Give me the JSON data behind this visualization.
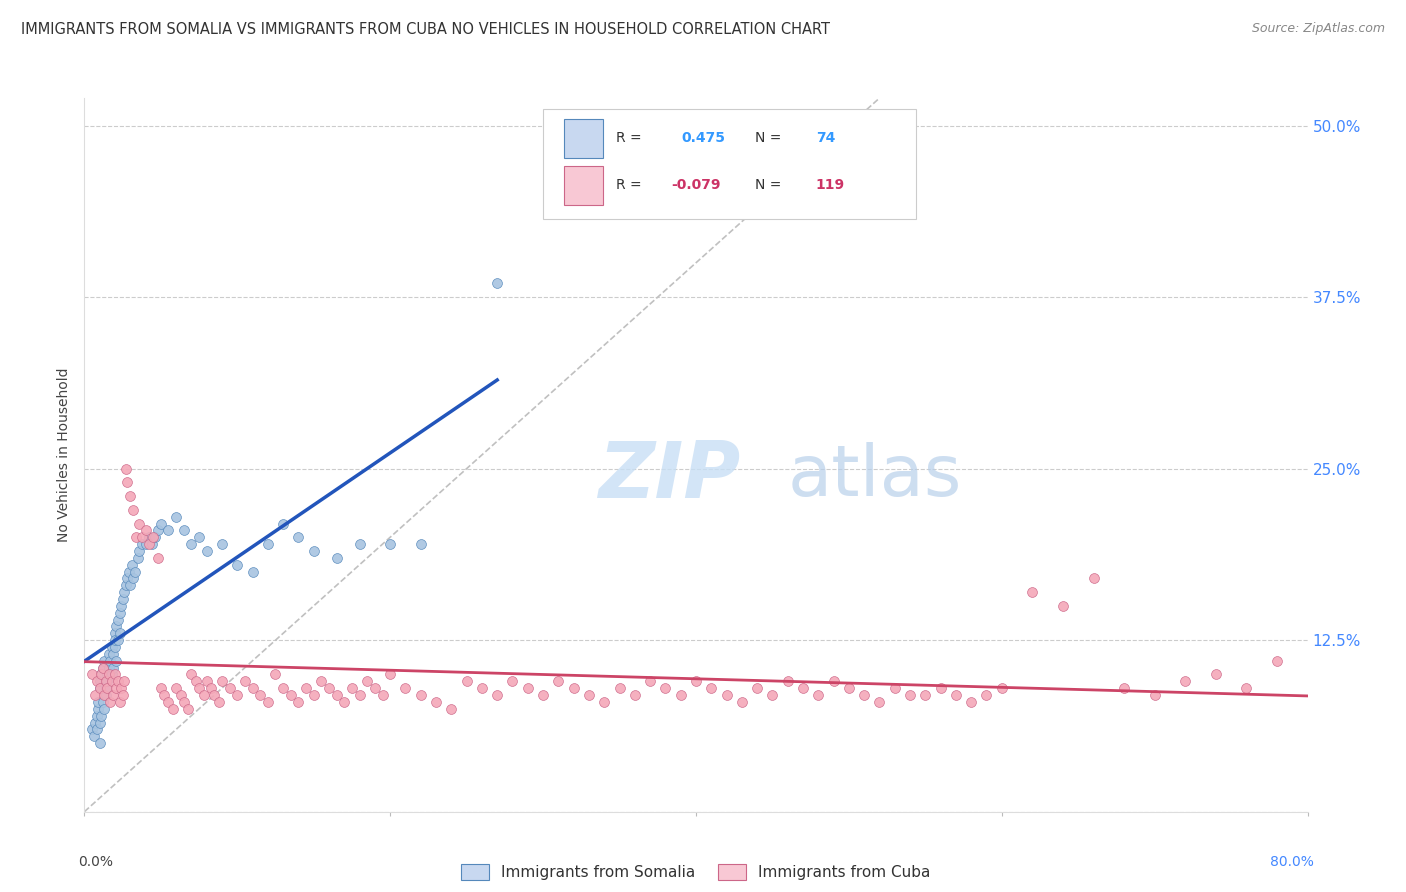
{
  "title": "IMMIGRANTS FROM SOMALIA VS IMMIGRANTS FROM CUBA NO VEHICLES IN HOUSEHOLD CORRELATION CHART",
  "source": "Source: ZipAtlas.com",
  "ylabel": "No Vehicles in Household",
  "ytick_values": [
    0.0,
    0.125,
    0.25,
    0.375,
    0.5
  ],
  "ytick_labels": [
    "",
    "12.5%",
    "25.0%",
    "37.5%",
    "50.0%"
  ],
  "xlim": [
    0.0,
    0.8
  ],
  "ylim": [
    0.0,
    0.52
  ],
  "somalia_R": 0.475,
  "somalia_N": 74,
  "cuba_R": -0.079,
  "cuba_N": 119,
  "somalia_color": "#a8c4e0",
  "somalia_edge": "#5588bb",
  "cuba_color": "#f4a8b8",
  "cuba_edge": "#cc6688",
  "somalia_line_color": "#2255bb",
  "cuba_line_color": "#cc4466",
  "diagonal_color": "#c0c0c0",
  "legend_somalia_face": "#c8d8f0",
  "legend_cuba_face": "#f8c8d4",
  "somalia_color_num": "#3399ff",
  "cuba_color_num": "#cc3366",
  "somalia_x": [
    0.005,
    0.006,
    0.007,
    0.008,
    0.008,
    0.009,
    0.009,
    0.01,
    0.01,
    0.01,
    0.011,
    0.011,
    0.012,
    0.012,
    0.013,
    0.013,
    0.014,
    0.014,
    0.015,
    0.015,
    0.016,
    0.016,
    0.017,
    0.018,
    0.018,
    0.019,
    0.019,
    0.02,
    0.02,
    0.02,
    0.021,
    0.021,
    0.022,
    0.022,
    0.023,
    0.023,
    0.024,
    0.025,
    0.026,
    0.027,
    0.028,
    0.029,
    0.03,
    0.031,
    0.032,
    0.033,
    0.035,
    0.036,
    0.038,
    0.04,
    0.042,
    0.044,
    0.046,
    0.048,
    0.05,
    0.055,
    0.06,
    0.065,
    0.07,
    0.075,
    0.08,
    0.09,
    0.1,
    0.11,
    0.12,
    0.13,
    0.14,
    0.15,
    0.165,
    0.18,
    0.2,
    0.22,
    0.27,
    0.01
  ],
  "somalia_y": [
    0.06,
    0.055,
    0.065,
    0.07,
    0.06,
    0.075,
    0.08,
    0.065,
    0.09,
    0.095,
    0.07,
    0.1,
    0.08,
    0.105,
    0.075,
    0.11,
    0.085,
    0.09,
    0.095,
    0.1,
    0.105,
    0.115,
    0.11,
    0.12,
    0.1,
    0.115,
    0.105,
    0.12,
    0.13,
    0.125,
    0.135,
    0.11,
    0.14,
    0.125,
    0.145,
    0.13,
    0.15,
    0.155,
    0.16,
    0.165,
    0.17,
    0.175,
    0.165,
    0.18,
    0.17,
    0.175,
    0.185,
    0.19,
    0.195,
    0.195,
    0.2,
    0.195,
    0.2,
    0.205,
    0.21,
    0.205,
    0.215,
    0.205,
    0.195,
    0.2,
    0.19,
    0.195,
    0.18,
    0.175,
    0.195,
    0.21,
    0.2,
    0.19,
    0.185,
    0.195,
    0.195,
    0.195,
    0.385,
    0.05
  ],
  "cuba_x": [
    0.005,
    0.007,
    0.008,
    0.01,
    0.011,
    0.012,
    0.013,
    0.014,
    0.015,
    0.016,
    0.017,
    0.018,
    0.019,
    0.02,
    0.021,
    0.022,
    0.023,
    0.024,
    0.025,
    0.026,
    0.027,
    0.028,
    0.03,
    0.032,
    0.034,
    0.036,
    0.038,
    0.04,
    0.042,
    0.045,
    0.048,
    0.05,
    0.052,
    0.055,
    0.058,
    0.06,
    0.063,
    0.065,
    0.068,
    0.07,
    0.073,
    0.075,
    0.078,
    0.08,
    0.083,
    0.085,
    0.088,
    0.09,
    0.095,
    0.1,
    0.105,
    0.11,
    0.115,
    0.12,
    0.125,
    0.13,
    0.135,
    0.14,
    0.145,
    0.15,
    0.155,
    0.16,
    0.165,
    0.17,
    0.175,
    0.18,
    0.185,
    0.19,
    0.195,
    0.2,
    0.21,
    0.22,
    0.23,
    0.24,
    0.25,
    0.26,
    0.27,
    0.28,
    0.29,
    0.3,
    0.31,
    0.32,
    0.33,
    0.34,
    0.35,
    0.36,
    0.37,
    0.38,
    0.39,
    0.4,
    0.41,
    0.42,
    0.43,
    0.44,
    0.45,
    0.46,
    0.47,
    0.48,
    0.49,
    0.5,
    0.51,
    0.52,
    0.53,
    0.54,
    0.55,
    0.56,
    0.57,
    0.58,
    0.59,
    0.6,
    0.62,
    0.64,
    0.66,
    0.68,
    0.7,
    0.72,
    0.74,
    0.76,
    0.78
  ],
  "cuba_y": [
    0.1,
    0.085,
    0.095,
    0.09,
    0.1,
    0.105,
    0.085,
    0.095,
    0.09,
    0.1,
    0.08,
    0.095,
    0.085,
    0.1,
    0.09,
    0.095,
    0.08,
    0.09,
    0.085,
    0.095,
    0.25,
    0.24,
    0.23,
    0.22,
    0.2,
    0.21,
    0.2,
    0.205,
    0.195,
    0.2,
    0.185,
    0.09,
    0.085,
    0.08,
    0.075,
    0.09,
    0.085,
    0.08,
    0.075,
    0.1,
    0.095,
    0.09,
    0.085,
    0.095,
    0.09,
    0.085,
    0.08,
    0.095,
    0.09,
    0.085,
    0.095,
    0.09,
    0.085,
    0.08,
    0.1,
    0.09,
    0.085,
    0.08,
    0.09,
    0.085,
    0.095,
    0.09,
    0.085,
    0.08,
    0.09,
    0.085,
    0.095,
    0.09,
    0.085,
    0.1,
    0.09,
    0.085,
    0.08,
    0.075,
    0.095,
    0.09,
    0.085,
    0.095,
    0.09,
    0.085,
    0.095,
    0.09,
    0.085,
    0.08,
    0.09,
    0.085,
    0.095,
    0.09,
    0.085,
    0.095,
    0.09,
    0.085,
    0.08,
    0.09,
    0.085,
    0.095,
    0.09,
    0.085,
    0.095,
    0.09,
    0.085,
    0.08,
    0.09,
    0.085,
    0.085,
    0.09,
    0.085,
    0.08,
    0.085,
    0.09,
    0.16,
    0.15,
    0.17,
    0.09,
    0.085,
    0.095,
    0.1,
    0.09,
    0.11
  ]
}
